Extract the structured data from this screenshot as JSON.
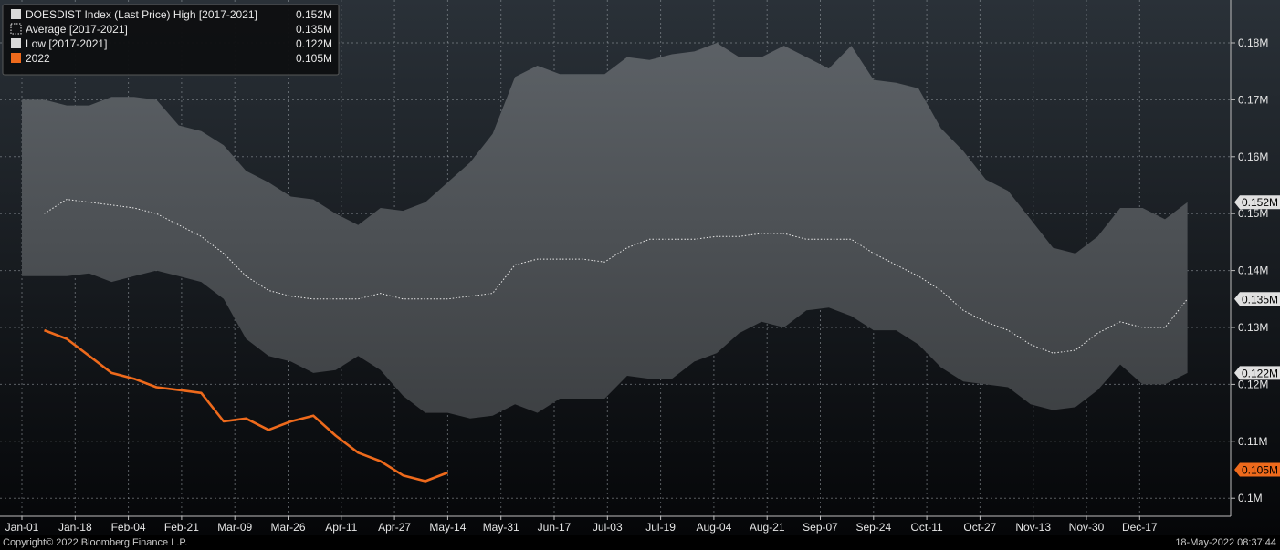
{
  "colors": {
    "background_top": "#2a3138",
    "background_bottom": "#050608",
    "band": "#808080",
    "orange": "#ee6a1c",
    "grid": "#9aa0a6"
  },
  "legend": {
    "items": [
      {
        "label": "DOESDIST Index (Last Price) High [2017-2021]",
        "value": "0.152M",
        "swatch": "solid-light"
      },
      {
        "label": "Average  [2017-2021]",
        "value": "0.135M",
        "swatch": "dotted"
      },
      {
        "label": "Low  [2017-2021]",
        "value": "0.122M",
        "swatch": "solid-light"
      },
      {
        "label": "2022",
        "value": "0.105M",
        "swatch": "orange"
      }
    ]
  },
  "footer": {
    "copyright": "Copyright© 2022 Bloomberg Finance L.P.",
    "timestamp": "18-May-2022 08:37:44"
  },
  "chart_data": {
    "type": "area",
    "xlabel": "",
    "ylabel": "",
    "ylim": [
      0.095,
      0.188
    ],
    "y_ticks": [
      {
        "value": 0.1,
        "label": "0.1M"
      },
      {
        "value": 0.11,
        "label": "0.11M"
      },
      {
        "value": 0.12,
        "label": "0.12M"
      },
      {
        "value": 0.13,
        "label": "0.13M"
      },
      {
        "value": 0.14,
        "label": "0.14M"
      },
      {
        "value": 0.15,
        "label": "0.15M"
      },
      {
        "value": 0.16,
        "label": "0.16M"
      },
      {
        "value": 0.17,
        "label": "0.17M"
      },
      {
        "value": 0.18,
        "label": "0.18M"
      }
    ],
    "x_tick_labels": [
      "Jan-01",
      "Jan-18",
      "Feb-04",
      "Feb-21",
      "Mar-09",
      "Mar-26",
      "Apr-11",
      "Apr-27",
      "May-14",
      "May-31",
      "Jun-17",
      "Jul-03",
      "Jul-19",
      "Aug-04",
      "Aug-21",
      "Sep-07",
      "Sep-24",
      "Oct-11",
      "Oct-27",
      "Nov-13",
      "Nov-30",
      "Dec-17"
    ],
    "weeks": 53,
    "series": [
      {
        "name": "DOESDIST Index (Last Price) High [2017-2021]",
        "values": [
          0.17,
          0.17,
          0.169,
          0.169,
          0.1705,
          0.1705,
          0.17,
          0.1655,
          0.1645,
          0.162,
          0.1575,
          0.1555,
          0.153,
          0.1525,
          0.15,
          0.148,
          0.151,
          0.1505,
          0.152,
          0.1555,
          0.159,
          0.164,
          0.174,
          0.176,
          0.1745,
          0.1745,
          0.1745,
          0.1775,
          0.177,
          0.178,
          0.1785,
          0.18,
          0.1775,
          0.1775,
          0.1795,
          0.1775,
          0.1755,
          0.1795,
          0.1735,
          0.173,
          0.172,
          0.165,
          0.161,
          0.156,
          0.154,
          0.149,
          0.144,
          0.143,
          0.146,
          0.151,
          0.151,
          0.149,
          0.152
        ]
      },
      {
        "name": "Average  [2017-2021]",
        "values": [
          null,
          0.15,
          0.1525,
          0.152,
          0.1515,
          0.151,
          0.15,
          0.148,
          0.146,
          0.143,
          0.139,
          0.1365,
          0.1355,
          0.135,
          0.135,
          0.135,
          0.136,
          0.135,
          0.135,
          0.135,
          0.1355,
          0.136,
          0.141,
          0.142,
          0.142,
          0.142,
          0.1415,
          0.144,
          0.1455,
          0.1455,
          0.1455,
          0.146,
          0.146,
          0.1465,
          0.1465,
          0.1455,
          0.1455,
          0.1455,
          0.143,
          0.141,
          0.139,
          0.1365,
          0.133,
          0.131,
          0.1295,
          0.127,
          0.1255,
          0.126,
          0.129,
          0.131,
          0.13,
          0.13,
          0.135
        ]
      },
      {
        "name": "Low  [2017-2021]",
        "values": [
          0.139,
          0.139,
          0.139,
          0.1395,
          0.138,
          0.139,
          0.14,
          0.139,
          0.138,
          0.135,
          0.128,
          0.125,
          0.124,
          0.122,
          0.1225,
          0.125,
          0.1225,
          0.118,
          0.115,
          0.115,
          0.114,
          0.1145,
          0.1165,
          0.115,
          0.1175,
          0.1175,
          0.1175,
          0.1215,
          0.121,
          0.121,
          0.124,
          0.1255,
          0.129,
          0.131,
          0.13,
          0.133,
          0.1335,
          0.132,
          0.1295,
          0.1295,
          0.127,
          0.123,
          0.1205,
          0.12,
          0.1195,
          0.1165,
          0.1155,
          0.116,
          0.119,
          0.1235,
          0.12,
          0.12,
          0.122
        ]
      },
      {
        "name": "2022",
        "values": [
          0.1295,
          0.128,
          0.125,
          0.122,
          0.121,
          0.1195,
          0.119,
          0.1185,
          0.1135,
          0.114,
          0.112,
          0.1135,
          0.1145,
          0.111,
          0.108,
          0.1065,
          0.104,
          0.103,
          0.1045
        ]
      }
    ],
    "end_labels": [
      {
        "value": 0.152,
        "label": "0.152M"
      },
      {
        "value": 0.135,
        "label": "0.135M"
      },
      {
        "value": 0.122,
        "label": "0.122M"
      },
      {
        "value": 0.105,
        "label": "0.105M"
      }
    ]
  }
}
